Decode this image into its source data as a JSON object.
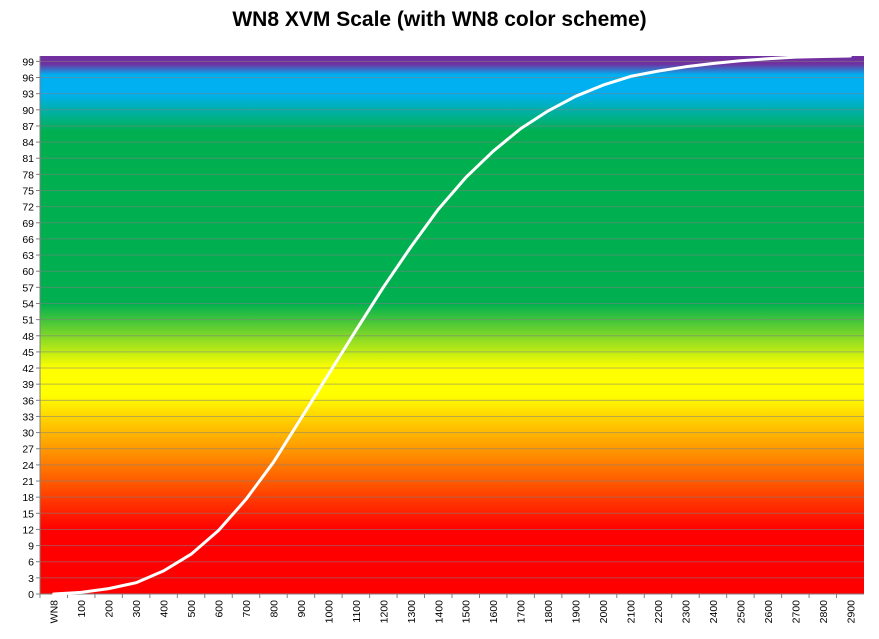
{
  "chart_data": {
    "type": "line",
    "title": "WN8 XVM Scale (with WN8 color scheme)",
    "xlabel": "",
    "ylabel": "",
    "x_category_label": "WN8",
    "x_ticks": [
      100,
      200,
      300,
      400,
      500,
      600,
      700,
      800,
      900,
      1000,
      1100,
      1200,
      1300,
      1400,
      1500,
      1600,
      1700,
      1800,
      1900,
      2000,
      2100,
      2200,
      2300,
      2400,
      2500,
      2600,
      2700,
      2800,
      2900
    ],
    "y_ticks": [
      0,
      3,
      6,
      9,
      12,
      15,
      18,
      21,
      24,
      27,
      30,
      33,
      36,
      39,
      42,
      45,
      48,
      51,
      54,
      57,
      60,
      63,
      66,
      69,
      72,
      75,
      78,
      81,
      84,
      87,
      90,
      93,
      96,
      99
    ],
    "xlim": [
      0,
      2900
    ],
    "ylim": [
      0,
      100
    ],
    "grid": true,
    "legend": "none",
    "series": [
      {
        "color": "#ffffff",
        "x": [
          0,
          100,
          200,
          300,
          400,
          500,
          600,
          700,
          800,
          900,
          1000,
          1100,
          1200,
          1300,
          1400,
          1500,
          1600,
          1700,
          1800,
          1900,
          2000,
          2100,
          2200,
          2300,
          2400,
          2500,
          2600,
          2700,
          2800,
          2900
        ],
        "y": [
          0,
          0.3,
          1.0,
          2.1,
          4.3,
          7.4,
          11.8,
          17.6,
          24.5,
          32.6,
          40.8,
          49.0,
          57.0,
          64.5,
          71.5,
          77.4,
          82.3,
          86.5,
          89.8,
          92.5,
          94.6,
          96.2,
          97.2,
          98.0,
          98.6,
          99.1,
          99.5,
          99.8,
          99.9,
          100
        ]
      }
    ],
    "background_colors": {
      "red": "#ff0000",
      "orange": "#ff9900",
      "yellow": "#ffff00",
      "green": "#00b050",
      "blue": "#00b0f0",
      "purple": "#7030a0"
    }
  }
}
